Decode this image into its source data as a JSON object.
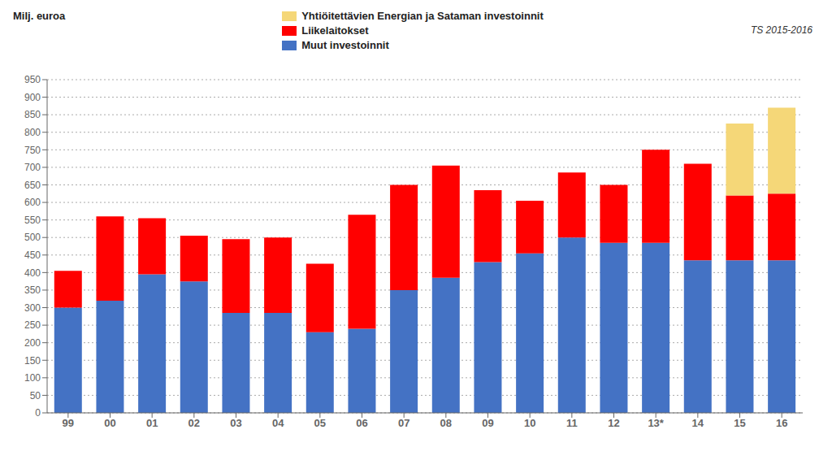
{
  "chart_data": {
    "type": "bar",
    "stacked": true,
    "ylabel": "Milj. euroa",
    "annotations": [
      "TS 2015-2016"
    ],
    "categories": [
      "99",
      "00",
      "01",
      "02",
      "03",
      "04",
      "05",
      "06",
      "07",
      "08",
      "09",
      "10",
      "11",
      "12",
      "13*",
      "14",
      "15",
      "16"
    ],
    "series": [
      {
        "name": "Muut investoinnit",
        "color": "#4472c4",
        "values": [
          300,
          320,
          395,
          375,
          285,
          285,
          230,
          240,
          350,
          385,
          430,
          455,
          500,
          485,
          485,
          435,
          435,
          435
        ]
      },
      {
        "name": "Liikelaitokset",
        "color": "#ff0000",
        "values": [
          105,
          240,
          160,
          130,
          210,
          215,
          195,
          325,
          300,
          320,
          205,
          150,
          185,
          165,
          265,
          275,
          185,
          190
        ]
      },
      {
        "name": "Yhtiöitettävien Energian ja Sataman investoinnit",
        "color": "#f5d778",
        "values": [
          0,
          0,
          0,
          0,
          0,
          0,
          0,
          0,
          0,
          0,
          0,
          0,
          0,
          0,
          0,
          0,
          205,
          245
        ]
      }
    ],
    "ylim": [
      0,
      950
    ],
    "yticks": [
      0,
      50,
      100,
      150,
      200,
      250,
      300,
      350,
      400,
      450,
      500,
      550,
      600,
      650,
      700,
      750,
      800,
      850,
      900,
      950
    ],
    "grid": true,
    "legend": "top"
  }
}
